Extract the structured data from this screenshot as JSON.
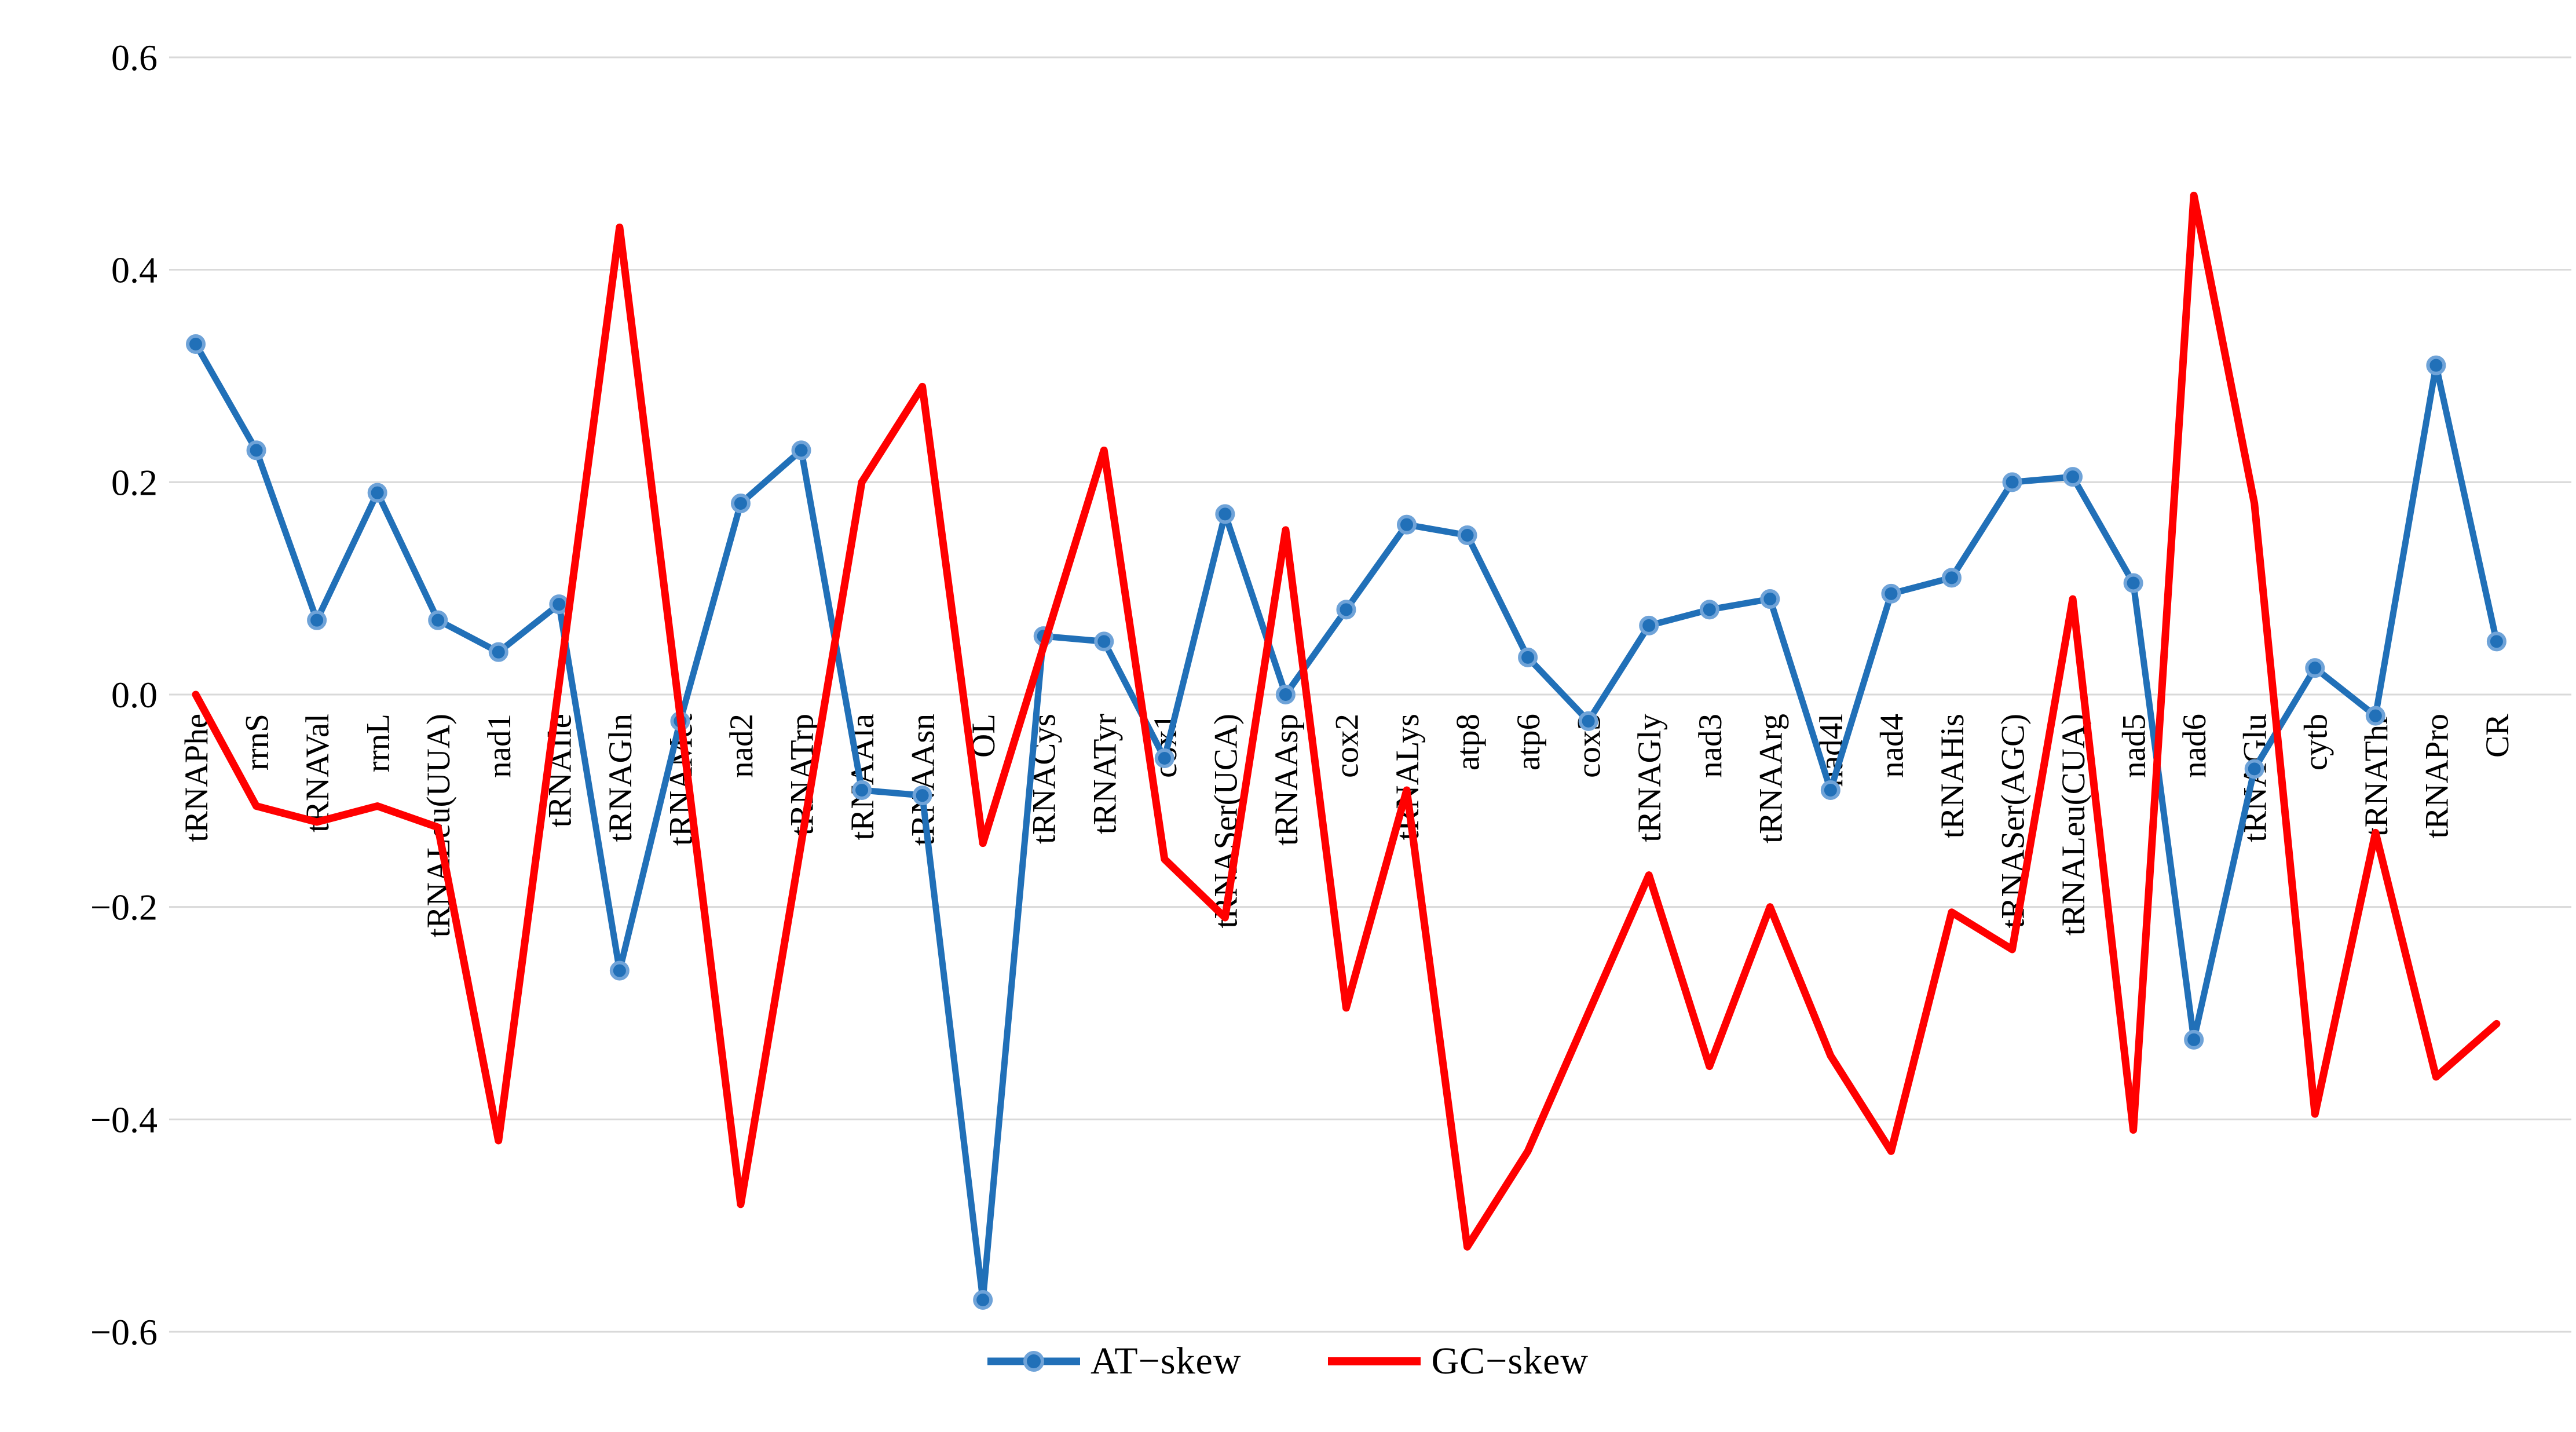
{
  "figure": {
    "background": "#FFFFFF",
    "gridline_color": "#D9D9D9",
    "text_color": "#000000"
  },
  "chart_data": {
    "type": "line",
    "title": "",
    "xlabel": "",
    "ylabel": "",
    "grid": true,
    "legend_position": "bottom",
    "ylim": [
      -0.6,
      0.6
    ],
    "yticks": [
      {
        "value": 0.6,
        "label": "0.6"
      },
      {
        "value": 0.4,
        "label": "0.4"
      },
      {
        "value": 0.2,
        "label": "0.2"
      },
      {
        "value": 0.0,
        "label": "0.0"
      },
      {
        "value": -0.2,
        "label": "−0.2"
      },
      {
        "value": -0.4,
        "label": "−0.4"
      },
      {
        "value": -0.6,
        "label": "−0.6"
      }
    ],
    "categories": [
      "tRNAPhe",
      "rrnS",
      "tRNAVal",
      "rrnL",
      "tRNALeu(UUA)",
      "nad1",
      "tRNAIle",
      "tRNAGln",
      "tRNAMet",
      "nad2",
      "tRNATrp",
      "tRNAAla",
      "tRNAAsn",
      "OL",
      "tRNACys",
      "tRNATyr",
      "cox1",
      "tRNASer(UCA)",
      "tRNAAsp",
      "cox2",
      "tRNALys",
      "atp8",
      "atp6",
      "cox3",
      "tRNAGly",
      "nad3",
      "tRNAArg",
      "nad4l",
      "nad4",
      "tRNAHis",
      "tRNASer(AGC)",
      "tRNALeu(CUA)",
      "nad5",
      "nad6",
      "tRNAGlu",
      "cytb",
      "tRNAThr",
      "tRNAPro",
      "CR"
    ],
    "series": [
      {
        "name": "AT−skew",
        "color": "#2170B8",
        "marker": true,
        "marker_border": "#6FA3D8",
        "values": [
          0.33,
          0.23,
          0.07,
          0.19,
          0.07,
          0.04,
          0.085,
          -0.26,
          -0.025,
          0.18,
          0.23,
          -0.09,
          -0.095,
          -0.57,
          0.055,
          0.05,
          -0.06,
          0.17,
          0.0,
          0.08,
          0.16,
          0.15,
          0.035,
          -0.025,
          0.065,
          0.08,
          0.09,
          -0.09,
          0.095,
          0.11,
          0.2,
          0.205,
          0.105,
          -0.325,
          -0.07,
          0.025,
          -0.02,
          0.31,
          0.05
        ]
      },
      {
        "name": "GC−skew",
        "color": "#FF0000",
        "marker": false,
        "marker_border": "#FF0000",
        "values": [
          0.0,
          -0.105,
          -0.12,
          -0.105,
          -0.125,
          -0.42,
          0.01,
          0.44,
          -0.02,
          -0.48,
          -0.14,
          0.2,
          0.29,
          -0.14,
          0.045,
          0.23,
          -0.155,
          -0.21,
          0.155,
          -0.295,
          -0.09,
          -0.52,
          -0.43,
          -0.3,
          -0.17,
          -0.35,
          -0.2,
          -0.34,
          -0.43,
          -0.205,
          -0.24,
          0.09,
          -0.41,
          0.47,
          0.18,
          -0.395,
          -0.13,
          -0.36,
          -0.31
        ]
      }
    ]
  }
}
